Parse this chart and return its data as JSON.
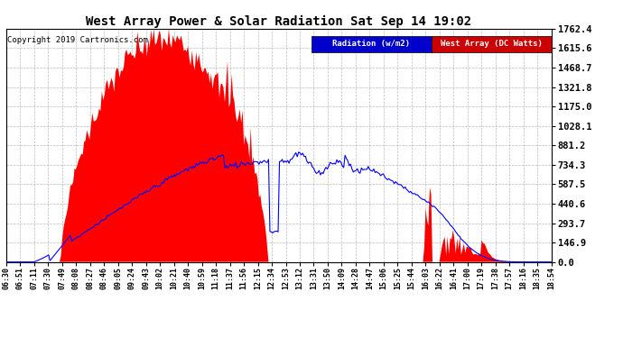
{
  "title": "West Array Power & Solar Radiation Sat Sep 14 19:02",
  "copyright": "Copyright 2019 Cartronics.com",
  "legend_labels": [
    "Radiation (w/m2)",
    "West Array (DC Watts)"
  ],
  "legend_colors": [
    "#0000cc",
    "#cc0000"
  ],
  "yticks": [
    0.0,
    146.9,
    293.7,
    440.6,
    587.5,
    734.3,
    881.2,
    1028.1,
    1175.0,
    1321.8,
    1468.7,
    1615.6,
    1762.4
  ],
  "ymax": 1762.4,
  "background_color": "#ffffff",
  "plot_bg_color": "#ffffff",
  "grid_color": "#aaaaaa",
  "x_tick_labels": [
    "06:30",
    "06:51",
    "07:11",
    "07:30",
    "07:49",
    "08:08",
    "08:27",
    "08:46",
    "09:05",
    "09:24",
    "09:43",
    "10:02",
    "10:21",
    "10:40",
    "10:59",
    "11:18",
    "11:37",
    "11:56",
    "12:15",
    "12:34",
    "12:53",
    "13:12",
    "13:31",
    "13:50",
    "14:09",
    "14:28",
    "14:47",
    "15:06",
    "15:25",
    "15:44",
    "16:03",
    "16:22",
    "16:41",
    "17:00",
    "17:19",
    "17:38",
    "17:57",
    "18:16",
    "18:35",
    "18:54"
  ]
}
